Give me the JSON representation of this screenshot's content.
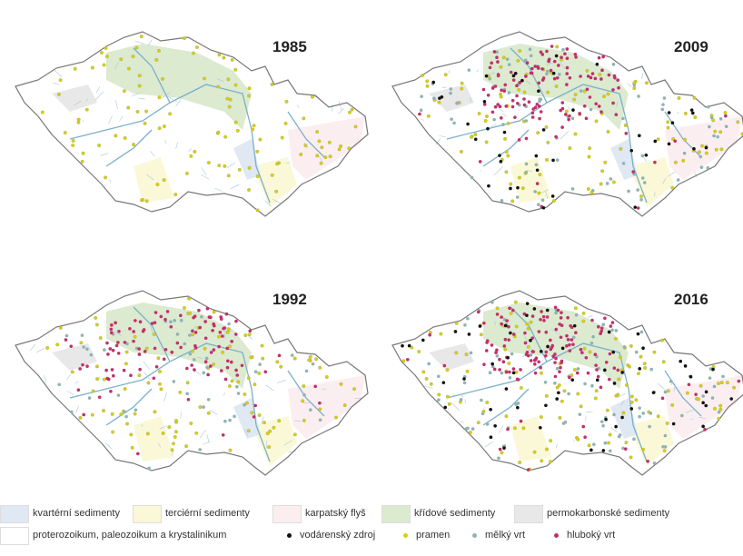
{
  "maps": [
    {
      "year": "1985"
    },
    {
      "year": "2009"
    },
    {
      "year": "1992"
    },
    {
      "year": "2016"
    }
  ],
  "legend": {
    "areas": [
      {
        "label": "kvartérní sedimenty",
        "color": "#dfe8f3"
      },
      {
        "label": "terciérní sedimenty",
        "color": "#fbf8d8"
      },
      {
        "label": "karpatský flyš",
        "color": "#fbeef1"
      },
      {
        "label": "křídové sedimenty",
        "color": "#dcead0"
      },
      {
        "label": "permokarbonské sedimenty",
        "color": "#e8e8e8"
      },
      {
        "label": "proterozoikum, paleozoikum a krystalinikum",
        "color": "#ffffff"
      }
    ],
    "points": [
      {
        "label": "vodárenský zdroj",
        "color": "#111111"
      },
      {
        "label": "pramen",
        "color": "#d8d000"
      },
      {
        "label": "mělký vrt",
        "color": "#8fb3b3"
      },
      {
        "label": "hluboký vrt",
        "color": "#c0306a"
      }
    ]
  }
}
